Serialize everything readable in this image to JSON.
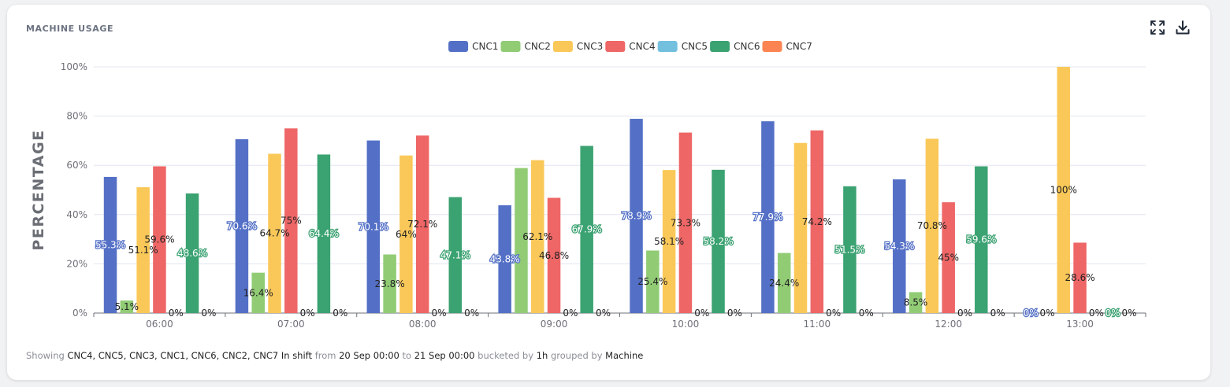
{
  "card": {
    "title": "MACHINE USAGE",
    "icons": [
      "expand-icon",
      "download-icon"
    ]
  },
  "footer": {
    "showing_label": "Showing",
    "machines": "CNC4, CNC5, CNC3, CNC1, CNC6, CNC2, CNC7",
    "state": "In shift",
    "from_label": "from",
    "from": "20 Sep 00:00",
    "to_label": "to",
    "to": "21 Sep 00:00",
    "bucket_label": "bucketed by",
    "bucket": "1h",
    "group_label": "grouped by",
    "group": "Machine"
  },
  "chart_data": {
    "type": "bar",
    "title": "",
    "xlabel": "",
    "ylabel": "PERCENTAGE",
    "ylim": [
      0,
      100
    ],
    "yticks": [
      0,
      20,
      40,
      60,
      80,
      100
    ],
    "ytick_labels": [
      "0%",
      "20%",
      "40%",
      "60%",
      "80%",
      "100%"
    ],
    "grid": true,
    "legend_position": "top-center",
    "categories": [
      "06:00",
      "07:00",
      "08:00",
      "09:00",
      "10:00",
      "11:00",
      "12:00",
      "13:00"
    ],
    "series": [
      {
        "name": "CNC1",
        "color": "#5470c6",
        "values": [
          55.3,
          70.6,
          70.1,
          43.8,
          78.9,
          77.9,
          54.3,
          0
        ]
      },
      {
        "name": "CNC2",
        "color": "#91cc75",
        "values": [
          5.1,
          16.4,
          23.8,
          58.9,
          25.4,
          24.4,
          8.5,
          null
        ]
      },
      {
        "name": "CNC3",
        "color": "#fac858",
        "values": [
          51.1,
          64.7,
          64,
          62.1,
          58.1,
          69.1,
          70.8,
          100
        ]
      },
      {
        "name": "CNC4",
        "color": "#ee6666",
        "values": [
          59.6,
          75,
          72.1,
          46.8,
          73.3,
          74.2,
          45,
          28.6
        ]
      },
      {
        "name": "CNC5",
        "color": "#73c0de",
        "values": [
          0,
          0,
          0,
          0,
          0,
          0,
          0,
          0
        ]
      },
      {
        "name": "CNC6",
        "color": "#3ba272",
        "values": [
          48.6,
          64.4,
          47.1,
          67.9,
          58.2,
          51.5,
          59.6,
          0
        ]
      },
      {
        "name": "CNC7",
        "color": "#fc8452",
        "values": [
          0,
          0,
          0,
          0,
          0,
          0,
          0,
          0
        ]
      }
    ],
    "data_labels": [
      [
        {
          "text": "55.3%",
          "series": "CNC1"
        },
        {
          "text": "5.1%",
          "series": "CNC2"
        },
        {
          "text": "51.1%",
          "series": "CNC3"
        },
        {
          "text": "59.6%",
          "series": "CNC4"
        },
        {
          "text": "0%",
          "series": "CNC5"
        },
        {
          "text": "48.6%",
          "series": "CNC6"
        },
        {
          "text": "0%",
          "series": "CNC7"
        }
      ],
      [
        {
          "text": "70.6%",
          "series": "CNC1"
        },
        {
          "text": "16.4%",
          "series": "CNC2"
        },
        {
          "text": "64.7%",
          "series": "CNC3"
        },
        {
          "text": "75%",
          "series": "CNC4"
        },
        {
          "text": "0%",
          "series": "CNC5"
        },
        {
          "text": "64.4%",
          "series": "CNC6"
        },
        {
          "text": "0%",
          "series": "CNC7"
        }
      ],
      [
        {
          "text": "70.1%",
          "series": "CNC1"
        },
        {
          "text": "23.8%",
          "series": "CNC2"
        },
        {
          "text": "64%",
          "series": "CNC3"
        },
        {
          "text": "72.1%",
          "series": "CNC4"
        },
        {
          "text": "0%",
          "series": "CNC5"
        },
        {
          "text": "47.1%",
          "series": "CNC6"
        },
        {
          "text": "0%",
          "series": "CNC7"
        }
      ],
      [
        {
          "text": "43.8%",
          "series": "CNC1"
        },
        {
          "text": "62.1%",
          "series": "CNC3"
        },
        {
          "text": "46.8%",
          "series": "CNC4"
        },
        {
          "text": "0%",
          "series": "CNC5"
        },
        {
          "text": "67.9%",
          "series": "CNC6"
        },
        {
          "text": "0%",
          "series": "CNC7"
        }
      ],
      [
        {
          "text": "78.9%",
          "series": "CNC1"
        },
        {
          "text": "25.4%",
          "series": "CNC2"
        },
        {
          "text": "58.1%",
          "series": "CNC3"
        },
        {
          "text": "73.3%",
          "series": "CNC4"
        },
        {
          "text": "0%",
          "series": "CNC5"
        },
        {
          "text": "58.2%",
          "series": "CNC6"
        },
        {
          "text": "0%",
          "series": "CNC7"
        }
      ],
      [
        {
          "text": "77.9%",
          "series": "CNC1"
        },
        {
          "text": "24.4%",
          "series": "CNC2"
        },
        {
          "text": "74.2%",
          "series": "CNC4"
        },
        {
          "text": "0%",
          "series": "CNC5"
        },
        {
          "text": "51.5%",
          "series": "CNC6"
        },
        {
          "text": "0%",
          "series": "CNC7"
        }
      ],
      [
        {
          "text": "54.3%",
          "series": "CNC1"
        },
        {
          "text": "8.5%",
          "series": "CNC2"
        },
        {
          "text": "70.8%",
          "series": "CNC3"
        },
        {
          "text": "45%",
          "series": "CNC4"
        },
        {
          "text": "0%",
          "series": "CNC5"
        },
        {
          "text": "59.6%",
          "series": "CNC6"
        },
        {
          "text": "0%",
          "series": "CNC7"
        }
      ],
      [
        {
          "text": "0%",
          "series": "CNC1"
        },
        {
          "text": "0%",
          "series": "CNC2"
        },
        {
          "text": "100%",
          "series": "CNC3"
        },
        {
          "text": "28.6%",
          "series": "CNC4"
        },
        {
          "text": "0%",
          "series": "CNC5"
        },
        {
          "text": "0%",
          "series": "CNC6"
        },
        {
          "text": "0%",
          "series": "CNC7"
        }
      ]
    ]
  }
}
